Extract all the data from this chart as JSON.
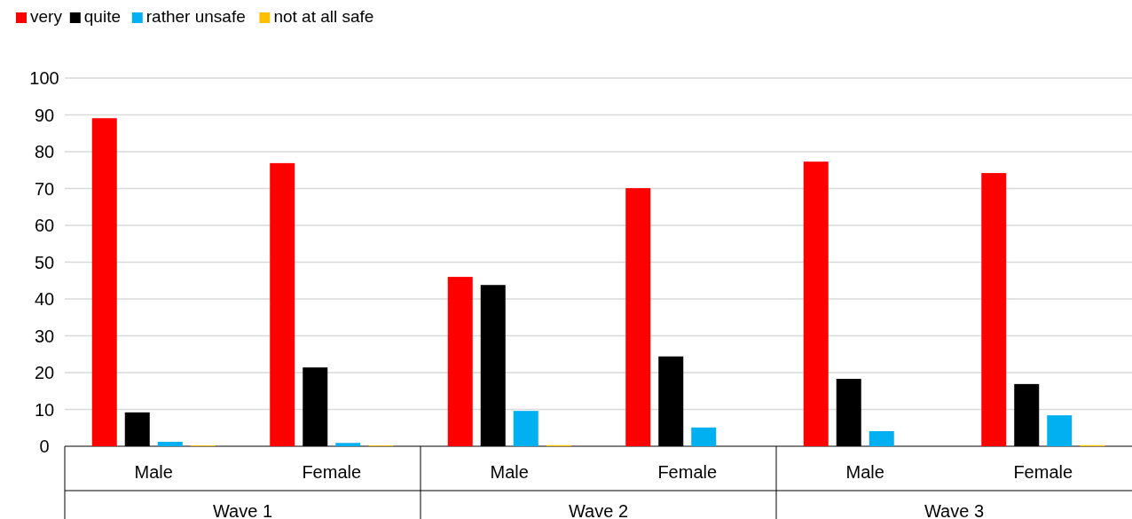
{
  "chart_data": {
    "type": "bar",
    "categories": [
      "Male",
      "Female",
      "Male",
      "Female",
      "Male",
      "Female"
    ],
    "annotations": [
      "Wave 1",
      "Wave 2",
      "Wave 3"
    ],
    "series": [
      {
        "name": "very",
        "color": "#ff0000",
        "values": [
          89.1,
          76.9,
          46,
          70.1,
          77.3,
          74.2
        ]
      },
      {
        "name": "quite",
        "color": "#000000",
        "values": [
          9.2,
          21.4,
          43.8,
          24.4,
          18.3,
          16.9
        ]
      },
      {
        "name": "rather unsafe",
        "color": "#00b0f0",
        "values": [
          1.2,
          0.9,
          9.6,
          5.1,
          4.1,
          8.4
        ]
      },
      {
        "name": "not at all safe",
        "color": "#ffc000",
        "values": [
          0.2,
          0.2,
          0.3,
          0,
          0,
          0.3
        ]
      }
    ],
    "ylim": [
      0,
      100
    ],
    "yticks": [
      0,
      10,
      20,
      30,
      40,
      50,
      60,
      70,
      80,
      90,
      100
    ],
    "grid": "y",
    "legend": "top left"
  }
}
